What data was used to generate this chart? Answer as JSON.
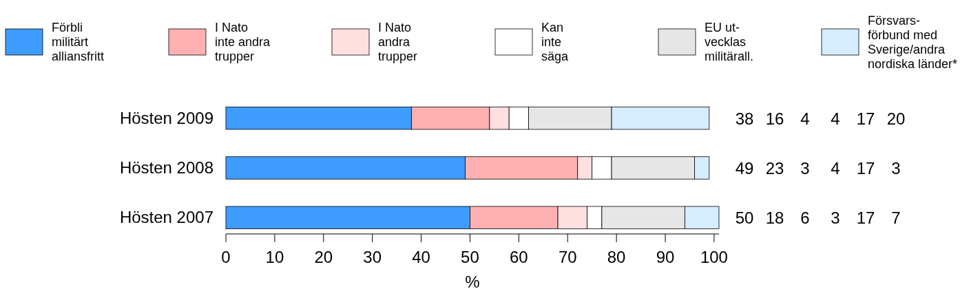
{
  "chart_data": {
    "type": "bar",
    "orientation": "horizontal",
    "stacked": true,
    "categories": [
      "Hösten 2009",
      "Hösten 2008",
      "Hösten 2007"
    ],
    "series": [
      {
        "name": "Förbli\nmilitärt\nalliansfritt",
        "color": "#3f9cff",
        "values": [
          38,
          49,
          50
        ]
      },
      {
        "name": "I Nato\ninte andra\ntrupper",
        "color": "#ffb0b0",
        "values": [
          16,
          23,
          18
        ]
      },
      {
        "name": "I Nato\nandra\ntrupper",
        "color": "#ffe0e0",
        "values": [
          4,
          3,
          6
        ]
      },
      {
        "name": "Kan\ninte\nsäga",
        "color": "#ffffff",
        "values": [
          4,
          4,
          3
        ]
      },
      {
        "name": "EU ut-\nvecklas\nmilitärall.",
        "color": "#e6e6e6",
        "values": [
          17,
          17,
          17
        ]
      },
      {
        "name": "Försvars-\nförbund med\nSverige/andra\nnordiska länder*",
        "color": "#d6ecff",
        "values": [
          20,
          3,
          7
        ]
      }
    ],
    "xlim": [
      0,
      101
    ],
    "xticks": [
      0,
      10,
      20,
      30,
      40,
      50,
      60,
      70,
      80,
      90,
      100
    ],
    "xlabel": "%",
    "data_labels": true,
    "legend": "top"
  }
}
